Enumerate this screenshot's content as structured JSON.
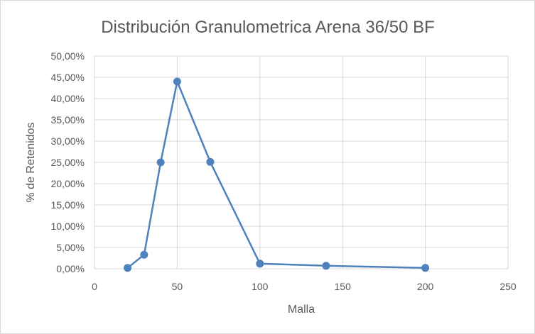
{
  "chart_data": {
    "type": "scatter",
    "title": "Distribución Granulometrica Arena 36/50 BF",
    "xlabel": "Malla",
    "ylabel": "% de Retenidos",
    "xlim": [
      0,
      250
    ],
    "ylim": [
      0,
      0.5
    ],
    "x_ticks": [
      0,
      50,
      100,
      150,
      200,
      250
    ],
    "x_tick_labels": [
      "0",
      "50",
      "100",
      "150",
      "200",
      "250"
    ],
    "y_ticks": [
      0,
      0.05,
      0.1,
      0.15,
      0.2,
      0.25,
      0.3,
      0.35,
      0.4,
      0.45,
      0.5
    ],
    "y_tick_labels": [
      "0,00%",
      "5,00%",
      "10,00%",
      "15,00%",
      "20,00%",
      "25,00%",
      "30,00%",
      "35,00%",
      "40,00%",
      "45,00%",
      "50,00%"
    ],
    "grid": true,
    "legend": "none",
    "series": [
      {
        "x": [
          20,
          30,
          40,
          50,
          70,
          100,
          140,
          200
        ],
        "y": [
          0.002,
          0.033,
          0.25,
          0.44,
          0.251,
          0.012,
          0.007,
          0.002
        ],
        "color": "#4f81bd",
        "markers": true,
        "lines": true
      }
    ]
  },
  "colors": {
    "series": "#4f81bd",
    "grid": "#d9d9d9",
    "text": "#595959"
  }
}
